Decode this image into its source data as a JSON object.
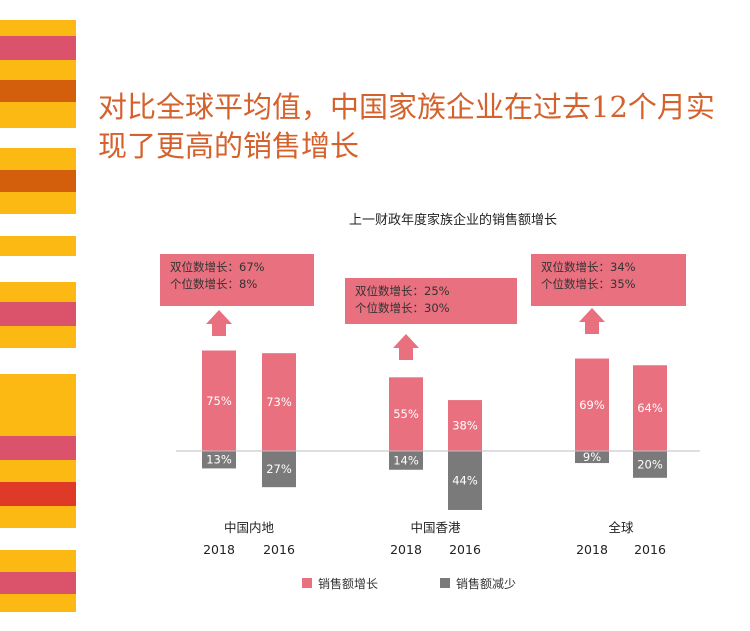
{
  "title": "对比全球平均值，中国家族企业在过去12个月实现了更高的销售增长",
  "colors": {
    "accent": "#d5622c",
    "increase": "#e8707f",
    "decrease": "#7a7a7a",
    "stripe_yellow": "#fdb913",
    "stripe_pink": "#db536a",
    "stripe_orange": "#d35f0c",
    "stripe_red": "#df3a27"
  },
  "chart_data": {
    "type": "bar",
    "title": "上一财政年度家族企业的销售额增长",
    "legend": [
      {
        "name": "销售额增长",
        "color": "#e8707f"
      },
      {
        "name": "销售额减少",
        "color": "#7a7a7a"
      }
    ],
    "groups": [
      {
        "name": "中国内地",
        "callout": [
          "双位数增长：67%",
          "个位数增长：8%"
        ],
        "bars": [
          {
            "year": "2018",
            "growth": 75,
            "decline": 13,
            "growth_label": "75%",
            "decline_label": "13%"
          },
          {
            "year": "2016",
            "growth": 73,
            "decline": 27,
            "growth_label": "73%",
            "decline_label": "27%"
          }
        ]
      },
      {
        "name": "中国香港",
        "callout": [
          "双位数增长：25%",
          "个位数增长：30%"
        ],
        "bars": [
          {
            "year": "2018",
            "growth": 55,
            "decline": 14,
            "growth_label": "55%",
            "decline_label": "14%"
          },
          {
            "year": "2016",
            "growth": 38,
            "decline": 44,
            "growth_label": "38%",
            "decline_label": "44%"
          }
        ]
      },
      {
        "name": "全球",
        "callout": [
          "双位数增长：34%",
          "个位数增长：35%"
        ],
        "bars": [
          {
            "year": "2018",
            "growth": 69,
            "decline": 9,
            "growth_label": "69%",
            "decline_label": "9%"
          },
          {
            "year": "2016",
            "growth": 64,
            "decline": 20,
            "growth_label": "64%",
            "decline_label": "20%"
          }
        ]
      }
    ]
  }
}
